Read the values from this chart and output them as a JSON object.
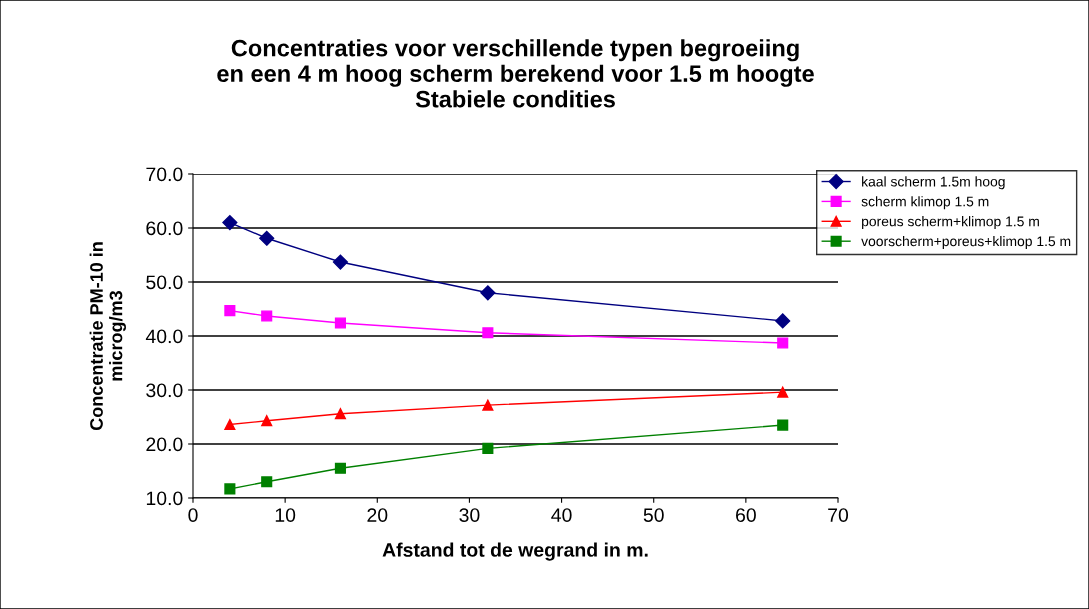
{
  "chart_data": {
    "type": "line",
    "title": "Concentraties voor verschillende typen begroeiing\nen een 4 m hoog scherm berekend voor 1.5 m hoogte\nStabiele condities",
    "xlabel": "Afstand tot de wegrand in m.",
    "ylabel": "Concentratie PM-10 in\nmicrog/m3",
    "x": [
      4,
      8,
      16,
      32,
      64
    ],
    "series": [
      {
        "name": "kaal scherm 1.5m hoog",
        "color": "#000080",
        "marker": "diamond",
        "values": [
          61.0,
          58.1,
          53.7,
          48.0,
          42.8
        ]
      },
      {
        "name": "scherm klimop 1.5 m",
        "color": "#ff00ff",
        "marker": "square",
        "values": [
          44.7,
          43.7,
          42.4,
          40.6,
          38.7
        ]
      },
      {
        "name": "poreus scherm+klimop 1.5 m",
        "color": "#ff0000",
        "marker": "triangle",
        "values": [
          23.6,
          24.3,
          25.6,
          27.2,
          29.6
        ]
      },
      {
        "name": "voorscherm+poreus+klimop 1.5 m",
        "color": "#008000",
        "marker": "square",
        "values": [
          11.7,
          13.0,
          15.5,
          19.2,
          23.5
        ]
      }
    ],
    "xlim": [
      0,
      70
    ],
    "xticks": [
      0,
      10,
      20,
      30,
      40,
      50,
      60,
      70
    ],
    "ylim": [
      10,
      70
    ],
    "yticks": [
      {
        "value": 10,
        "label": "10.0"
      },
      {
        "value": 20,
        "label": "20.0"
      },
      {
        "value": 30,
        "label": "30.0"
      },
      {
        "value": 40,
        "label": "40.0"
      },
      {
        "value": 50,
        "label": "50.0"
      },
      {
        "value": 60,
        "label": "60.0"
      },
      {
        "value": 70,
        "label": "70.0"
      }
    ],
    "grid": "y",
    "legend": "top right"
  }
}
